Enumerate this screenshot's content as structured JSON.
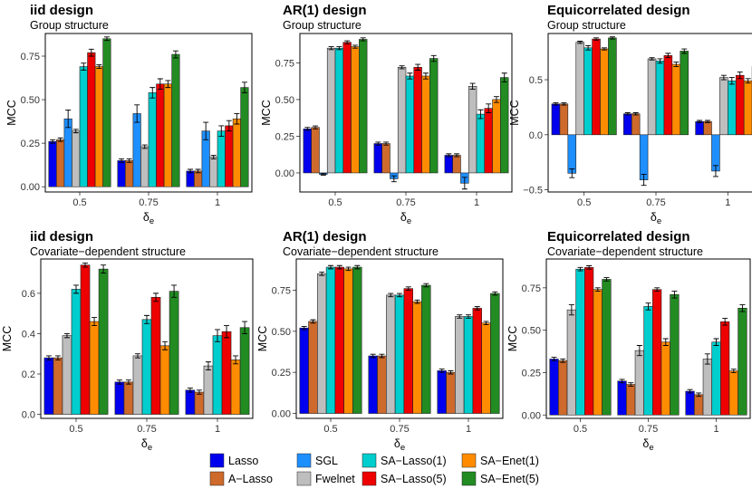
{
  "colors": {
    "Lasso": "#0000ee",
    "A-Lasso": "#cd6a2c",
    "SGL": "#1e8fff",
    "Fwelnet": "#bebebe",
    "SA-Lasso(1)": "#00cdcd",
    "SA-Lasso(5)": "#ee0000",
    "SA-Enet(1)": "#ff8c00",
    "SA-Enet(5)": "#228b22"
  },
  "legend": {
    "items": [
      "Lasso",
      "A−Lasso",
      "SGL",
      "Fwelnet",
      "SA−Lasso(1)",
      "SA−Lasso(5)",
      "SA−Enet(1)",
      "SA−Enet(5)"
    ]
  },
  "chart_data": [
    {
      "type": "bar",
      "title": "iid design",
      "subtitle": "Group structure",
      "xlabel": "δe",
      "ylabel": "MCC",
      "categories": [
        "0.5",
        "0.75",
        "1"
      ],
      "ylim": [
        -0.03,
        0.88
      ],
      "yticks": [
        0.0,
        0.25,
        0.5,
        0.75
      ],
      "ytick_labels": [
        "0.00",
        "0.25",
        "0.50",
        "0.75"
      ],
      "series": [
        {
          "name": "Lasso",
          "values": [
            0.26,
            0.15,
            0.09
          ],
          "err": [
            0.01,
            0.01,
            0.01
          ]
        },
        {
          "name": "A-Lasso",
          "values": [
            0.27,
            0.15,
            0.09
          ],
          "err": [
            0.01,
            0.01,
            0.01
          ]
        },
        {
          "name": "SGL",
          "values": [
            0.39,
            0.42,
            0.32
          ],
          "err": [
            0.05,
            0.05,
            0.05
          ]
        },
        {
          "name": "Fwelnet",
          "values": [
            0.32,
            0.23,
            0.17
          ],
          "err": [
            0.01,
            0.01,
            0.01
          ]
        },
        {
          "name": "SA-Lasso(1)",
          "values": [
            0.69,
            0.54,
            0.32
          ],
          "err": [
            0.02,
            0.03,
            0.03
          ]
        },
        {
          "name": "SA-Lasso(5)",
          "values": [
            0.77,
            0.59,
            0.35
          ],
          "err": [
            0.02,
            0.03,
            0.03
          ]
        },
        {
          "name": "SA-Enet(1)",
          "values": [
            0.69,
            0.59,
            0.39
          ],
          "err": [
            0.01,
            0.02,
            0.03
          ]
        },
        {
          "name": "SA-Enet(5)",
          "values": [
            0.85,
            0.76,
            0.57
          ],
          "err": [
            0.01,
            0.02,
            0.03
          ]
        }
      ]
    },
    {
      "type": "bar",
      "title": "AR(1) design",
      "subtitle": "Group structure",
      "xlabel": "δe",
      "ylabel": "MCC",
      "categories": [
        "0.5",
        "0.75",
        "1"
      ],
      "ylim": [
        -0.13,
        0.95
      ],
      "yticks": [
        0.0,
        0.25,
        0.5,
        0.75
      ],
      "ytick_labels": [
        "0.00",
        "0.25",
        "0.50",
        "0.75"
      ],
      "series": [
        {
          "name": "Lasso",
          "values": [
            0.3,
            0.2,
            0.12
          ],
          "err": [
            0.01,
            0.01,
            0.01
          ]
        },
        {
          "name": "A-Lasso",
          "values": [
            0.31,
            0.2,
            0.12
          ],
          "err": [
            0.01,
            0.01,
            0.01
          ]
        },
        {
          "name": "SGL",
          "values": [
            -0.01,
            -0.04,
            -0.07
          ],
          "err": [
            0.005,
            0.02,
            0.04
          ]
        },
        {
          "name": "Fwelnet",
          "values": [
            0.85,
            0.72,
            0.59
          ],
          "err": [
            0.01,
            0.01,
            0.02
          ]
        },
        {
          "name": "SA-Lasso(1)",
          "values": [
            0.85,
            0.66,
            0.4
          ],
          "err": [
            0.01,
            0.02,
            0.03
          ]
        },
        {
          "name": "SA-Lasso(5)",
          "values": [
            0.89,
            0.72,
            0.44
          ],
          "err": [
            0.01,
            0.02,
            0.03
          ]
        },
        {
          "name": "SA-Enet(1)",
          "values": [
            0.86,
            0.66,
            0.5
          ],
          "err": [
            0.01,
            0.02,
            0.02
          ]
        },
        {
          "name": "SA-Enet(5)",
          "values": [
            0.91,
            0.78,
            0.65
          ],
          "err": [
            0.01,
            0.02,
            0.03
          ]
        }
      ]
    },
    {
      "type": "bar",
      "title": "Equicorrelated design",
      "subtitle": "Group structure",
      "xlabel": "δe",
      "ylabel": "MCC",
      "categories": [
        "0.5",
        "0.75",
        "1"
      ],
      "ylim": [
        -0.52,
        0.92
      ],
      "yticks": [
        -0.5,
        0.0,
        0.5
      ],
      "ytick_labels": [
        "−0.5",
        "0.0",
        "0.5"
      ],
      "series": [
        {
          "name": "Lasso",
          "values": [
            0.28,
            0.19,
            0.12
          ],
          "err": [
            0.01,
            0.01,
            0.01
          ]
        },
        {
          "name": "A-Lasso",
          "values": [
            0.28,
            0.19,
            0.12
          ],
          "err": [
            0.01,
            0.01,
            0.01
          ]
        },
        {
          "name": "SGL",
          "values": [
            -0.35,
            -0.41,
            -0.33
          ],
          "err": [
            0.04,
            0.05,
            0.05
          ]
        },
        {
          "name": "Fwelnet",
          "values": [
            0.84,
            0.69,
            0.52
          ],
          "err": [
            0.01,
            0.01,
            0.02
          ]
        },
        {
          "name": "SA-Lasso(1)",
          "values": [
            0.79,
            0.67,
            0.49
          ],
          "err": [
            0.02,
            0.02,
            0.03
          ]
        },
        {
          "name": "SA-Lasso(5)",
          "values": [
            0.87,
            0.72,
            0.54
          ],
          "err": [
            0.01,
            0.02,
            0.03
          ]
        },
        {
          "name": "SA-Enet(1)",
          "values": [
            0.78,
            0.64,
            0.49
          ],
          "err": [
            0.01,
            0.02,
            0.02
          ]
        },
        {
          "name": "SA-Enet(5)",
          "values": [
            0.88,
            0.76,
            0.62
          ],
          "err": [
            0.01,
            0.02,
            0.02
          ]
        }
      ]
    },
    {
      "type": "bar",
      "title": "iid design",
      "subtitle": "Covariate−dependent structure",
      "xlabel": "δe",
      "ylabel": "MCC",
      "categories": [
        "0.5",
        "0.75",
        "1"
      ],
      "ylim": [
        -0.02,
        0.77
      ],
      "yticks": [
        0.0,
        0.2,
        0.4,
        0.6
      ],
      "ytick_labels": [
        "0.0",
        "0.2",
        "0.4",
        "0.6"
      ],
      "series": [
        {
          "name": "Lasso",
          "values": [
            0.28,
            0.16,
            0.12
          ],
          "err": [
            0.01,
            0.01,
            0.01
          ]
        },
        {
          "name": "A-Lasso",
          "values": [
            0.28,
            0.16,
            0.11
          ],
          "err": [
            0.01,
            0.01,
            0.01
          ]
        },
        {
          "name": "Fwelnet",
          "values": [
            0.39,
            0.29,
            0.24
          ],
          "err": [
            0.01,
            0.01,
            0.02
          ]
        },
        {
          "name": "SA-Lasso(1)",
          "values": [
            0.62,
            0.47,
            0.39
          ],
          "err": [
            0.02,
            0.02,
            0.03
          ]
        },
        {
          "name": "SA-Lasso(5)",
          "values": [
            0.74,
            0.58,
            0.41
          ],
          "err": [
            0.01,
            0.02,
            0.03
          ]
        },
        {
          "name": "SA-Enet(1)",
          "values": [
            0.46,
            0.34,
            0.27
          ],
          "err": [
            0.02,
            0.02,
            0.02
          ]
        },
        {
          "name": "SA-Enet(5)",
          "values": [
            0.72,
            0.61,
            0.43
          ],
          "err": [
            0.02,
            0.03,
            0.03
          ]
        }
      ]
    },
    {
      "type": "bar",
      "title": "AR(1) design",
      "subtitle": "Covariate−dependent structure",
      "xlabel": "δe",
      "ylabel": "MCC",
      "categories": [
        "0.5",
        "0.75",
        "1"
      ],
      "ylim": [
        -0.03,
        0.94
      ],
      "yticks": [
        0.0,
        0.25,
        0.5,
        0.75
      ],
      "ytick_labels": [
        "0.00",
        "0.25",
        "0.50",
        "0.75"
      ],
      "series": [
        {
          "name": "Lasso",
          "values": [
            0.52,
            0.35,
            0.26
          ],
          "err": [
            0.01,
            0.01,
            0.01
          ]
        },
        {
          "name": "A-Lasso",
          "values": [
            0.56,
            0.35,
            0.25
          ],
          "err": [
            0.01,
            0.01,
            0.01
          ]
        },
        {
          "name": "Fwelnet",
          "values": [
            0.85,
            0.72,
            0.59
          ],
          "err": [
            0.01,
            0.01,
            0.01
          ]
        },
        {
          "name": "SA-Lasso(1)",
          "values": [
            0.89,
            0.72,
            0.59
          ],
          "err": [
            0.01,
            0.01,
            0.01
          ]
        },
        {
          "name": "SA-Lasso(5)",
          "values": [
            0.89,
            0.76,
            0.64
          ],
          "err": [
            0.01,
            0.01,
            0.01
          ]
        },
        {
          "name": "SA-Enet(1)",
          "values": [
            0.88,
            0.68,
            0.55
          ],
          "err": [
            0.01,
            0.01,
            0.01
          ]
        },
        {
          "name": "SA-Enet(5)",
          "values": [
            0.89,
            0.78,
            0.73
          ],
          "err": [
            0.01,
            0.01,
            0.01
          ]
        }
      ]
    },
    {
      "type": "bar",
      "title": "Equicorrelated design",
      "subtitle": "Covariate−dependent structure",
      "xlabel": "δe",
      "ylabel": "MCC",
      "categories": [
        "0.5",
        "0.75",
        "1"
      ],
      "ylim": [
        -0.02,
        0.92
      ],
      "yticks": [
        0.0,
        0.25,
        0.5,
        0.75
      ],
      "ytick_labels": [
        "0.00",
        "0.25",
        "0.50",
        "0.75"
      ],
      "series": [
        {
          "name": "Lasso",
          "values": [
            0.33,
            0.2,
            0.14
          ],
          "err": [
            0.01,
            0.01,
            0.01
          ]
        },
        {
          "name": "A-Lasso",
          "values": [
            0.32,
            0.18,
            0.12
          ],
          "err": [
            0.01,
            0.01,
            0.01
          ]
        },
        {
          "name": "Fwelnet",
          "values": [
            0.62,
            0.38,
            0.33
          ],
          "err": [
            0.03,
            0.03,
            0.03
          ]
        },
        {
          "name": "SA-Lasso(1)",
          "values": [
            0.86,
            0.64,
            0.43
          ],
          "err": [
            0.01,
            0.02,
            0.02
          ]
        },
        {
          "name": "SA-Lasso(5)",
          "values": [
            0.87,
            0.74,
            0.55
          ],
          "err": [
            0.01,
            0.01,
            0.02
          ]
        },
        {
          "name": "SA-Enet(1)",
          "values": [
            0.74,
            0.43,
            0.26
          ],
          "err": [
            0.01,
            0.02,
            0.01
          ]
        },
        {
          "name": "SA-Enet(5)",
          "values": [
            0.8,
            0.71,
            0.63
          ],
          "err": [
            0.01,
            0.02,
            0.02
          ]
        }
      ]
    }
  ]
}
